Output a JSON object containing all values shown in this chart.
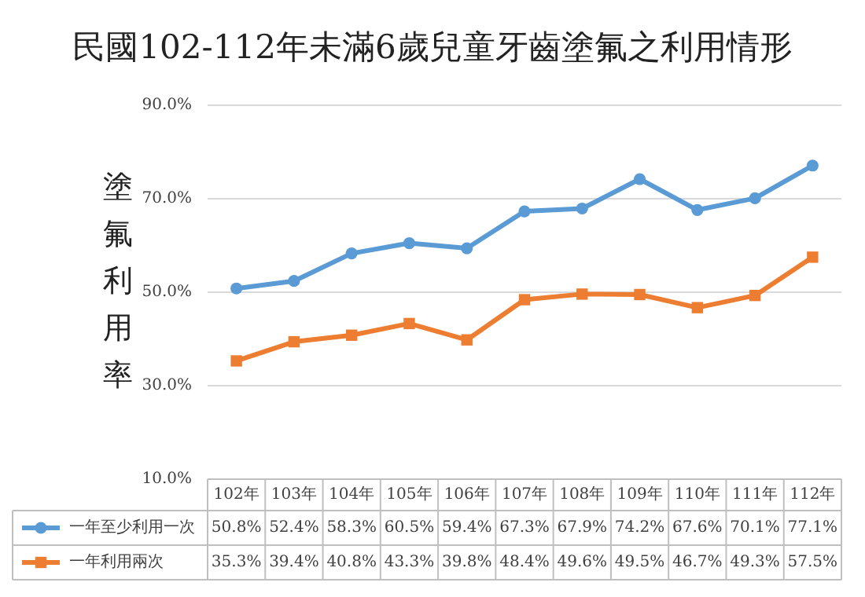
{
  "chart_data": {
    "type": "line",
    "title": "民國102-112年未滿6歲兒童牙齒塗氟之利用情形",
    "ylabel": "塗氟利用率",
    "categories": [
      "102年",
      "103年",
      "104年",
      "105年",
      "106年",
      "107年",
      "108年",
      "109年",
      "110年",
      "111年",
      "112年"
    ],
    "series": [
      {
        "name": "一年至少利用一次",
        "color": "#5b9bd5",
        "marker": "circle",
        "values": [
          50.8,
          52.4,
          58.3,
          60.5,
          59.4,
          67.3,
          67.9,
          74.2,
          67.6,
          70.1,
          77.1
        ],
        "value_labels": [
          "50.8%",
          "52.4%",
          "58.3%",
          "60.5%",
          "59.4%",
          "67.3%",
          "67.9%",
          "74.2%",
          "67.6%",
          "70.1%",
          "77.1%"
        ]
      },
      {
        "name": "一年利用兩次",
        "color": "#ed7d31",
        "marker": "square",
        "values": [
          35.3,
          39.4,
          40.8,
          43.3,
          39.8,
          48.4,
          49.6,
          49.5,
          46.7,
          49.3,
          57.5
        ],
        "value_labels": [
          "35.3%",
          "39.4%",
          "40.8%",
          "43.3%",
          "39.8%",
          "48.4%",
          "49.6%",
          "49.5%",
          "46.7%",
          "49.3%",
          "57.5%"
        ]
      }
    ],
    "ylim": [
      10,
      90
    ],
    "yticks": [
      {
        "value": 10,
        "label": "10.0%"
      },
      {
        "value": 30,
        "label": "30.0%"
      },
      {
        "value": 50,
        "label": "50.0%"
      },
      {
        "value": 70,
        "label": "70.0%"
      },
      {
        "value": 90,
        "label": "90.0%"
      }
    ],
    "grid": "y",
    "legend": "bottom",
    "line_style": "solid"
  }
}
